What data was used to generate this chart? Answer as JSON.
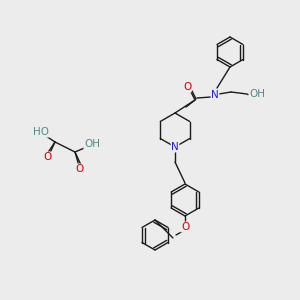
{
  "bg_color": "#ececec",
  "bond_color": "#1a1a1a",
  "N_color": "#2020cc",
  "O_color": "#cc0000",
  "H_color": "#558888",
  "font_size_atom": 7.5,
  "font_size_small": 6.5,
  "line_width": 1.0
}
